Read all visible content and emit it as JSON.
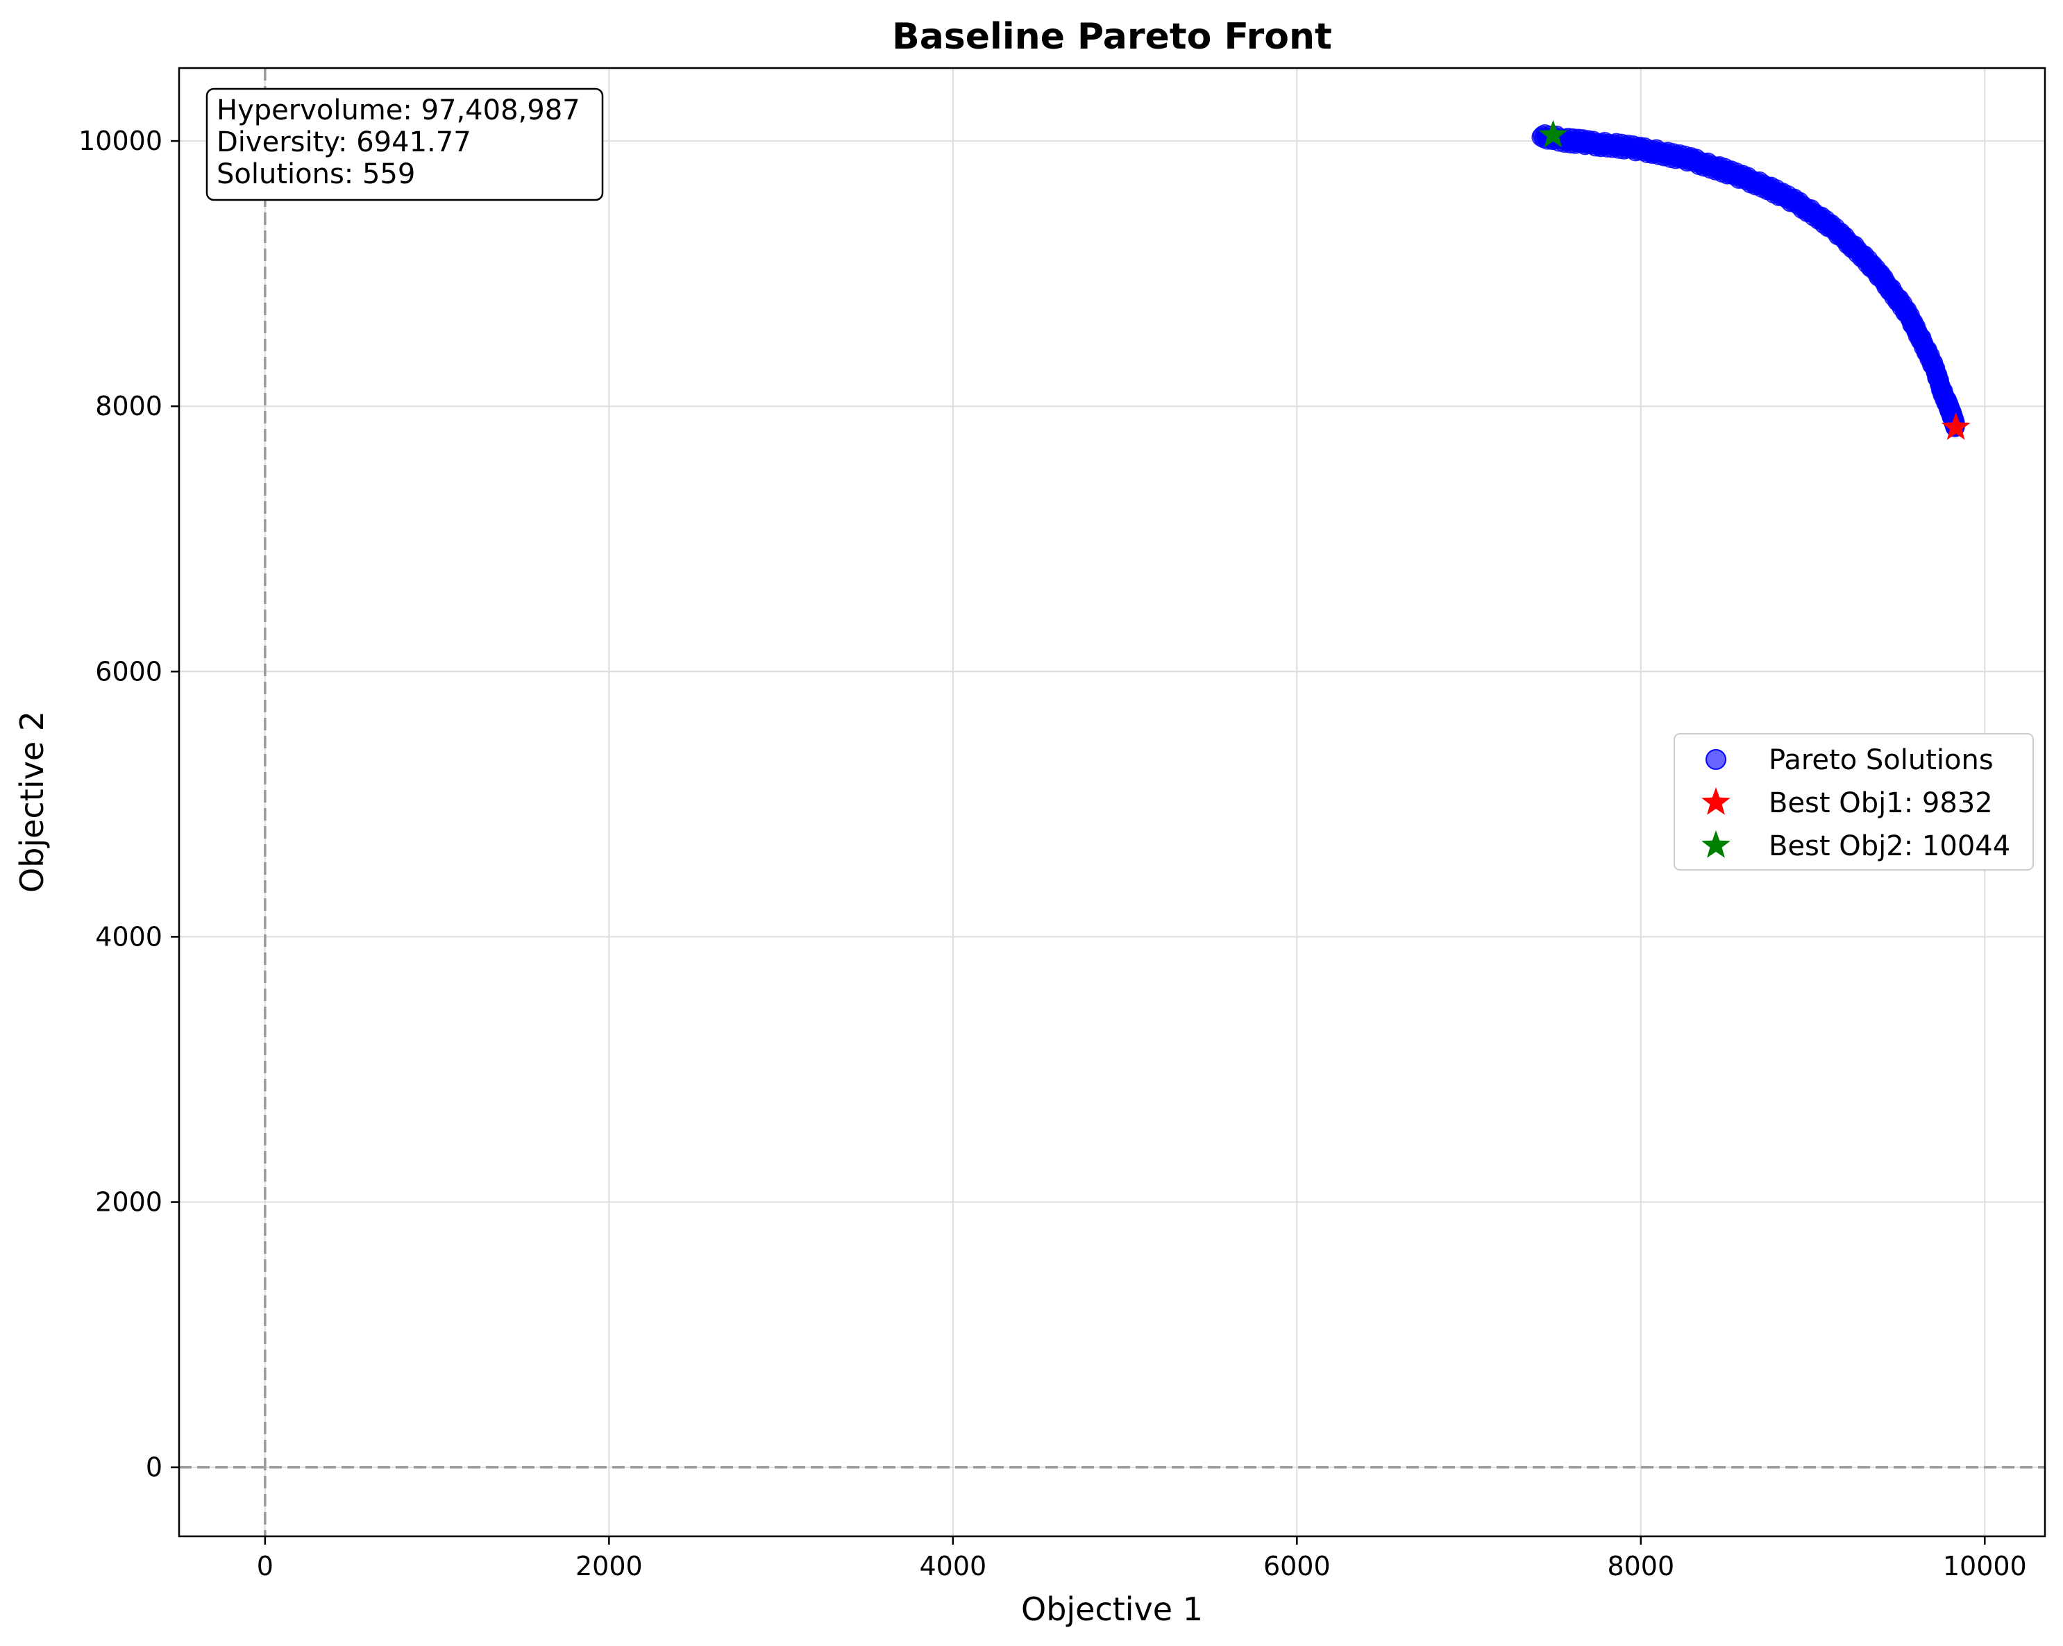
{
  "colors": {
    "pareto": "#0000ff",
    "best_obj1": "#ff0000",
    "best_obj2": "#008000",
    "grid": "#dddddd",
    "zero_line": "#999999"
  },
  "chart_data": {
    "type": "scatter",
    "title": "Baseline Pareto Front",
    "xlabel": "Objective 1",
    "ylabel": "Objective 2",
    "xlim": [
      -500,
      10350
    ],
    "ylim": [
      -520,
      10550
    ],
    "xticks": [
      0,
      2000,
      4000,
      6000,
      8000,
      10000
    ],
    "yticks": [
      0,
      2000,
      4000,
      6000,
      8000,
      10000
    ],
    "xtick_labels": [
      "0",
      "2000",
      "4000",
      "6000",
      "8000",
      "10000"
    ],
    "ytick_labels": [
      "0",
      "2000",
      "4000",
      "6000",
      "8000",
      "10000"
    ],
    "grid": true,
    "reference_lines": [
      {
        "orientation": "vertical",
        "value": 0,
        "style": "dashed"
      },
      {
        "orientation": "horizontal",
        "value": 0,
        "style": "dashed"
      }
    ],
    "legend_position": "center-right",
    "stats_box": {
      "position": "top-left",
      "lines": [
        "Hypervolume: 97,408,987",
        "Diversity: 6941.77",
        "Solutions: 559"
      ]
    },
    "series": [
      {
        "name": "Pareto Solutions",
        "marker": "circle",
        "color": "#0000ff",
        "alpha": 0.6,
        "count": 559,
        "x": [
          7420,
          7480,
          7540,
          7600,
          7650,
          7700,
          7760,
          7820,
          7880,
          7940,
          8000,
          8060,
          8120,
          8180,
          8240,
          8300,
          8360,
          8420,
          8480,
          8540,
          8600,
          8660,
          8720,
          8780,
          8840,
          8900,
          8960,
          9020,
          9070,
          9120,
          9170,
          9220,
          9270,
          9320,
          9360,
          9400,
          9440,
          9480,
          9520,
          9560,
          9590,
          9620,
          9650,
          9680,
          9710,
          9730,
          9750,
          9770,
          9790,
          9800,
          9810,
          9815,
          9820,
          9825,
          9830
        ],
        "y": [
          10030,
          10030,
          10010,
          10000,
          9995,
          9985,
          9975,
          9970,
          9960,
          9950,
          9935,
          9925,
          9910,
          9890,
          9875,
          9855,
          9830,
          9805,
          9780,
          9750,
          9720,
          9690,
          9660,
          9620,
          9580,
          9540,
          9490,
          9440,
          9390,
          9340,
          9280,
          9220,
          9160,
          9090,
          9030,
          8970,
          8900,
          8830,
          8760,
          8680,
          8600,
          8530,
          8450,
          8370,
          8280,
          8200,
          8120,
          8060,
          8000,
          7960,
          7930,
          7910,
          7890,
          7870,
          7850
        ]
      },
      {
        "name": "Best Obj1: 9832",
        "marker": "star",
        "color": "#ff0000",
        "x": [
          9832
        ],
        "y": [
          7840
        ]
      },
      {
        "name": "Best Obj2: 10044",
        "marker": "star",
        "color": "#008000",
        "x": [
          7490
        ],
        "y": [
          10044
        ]
      }
    ]
  }
}
